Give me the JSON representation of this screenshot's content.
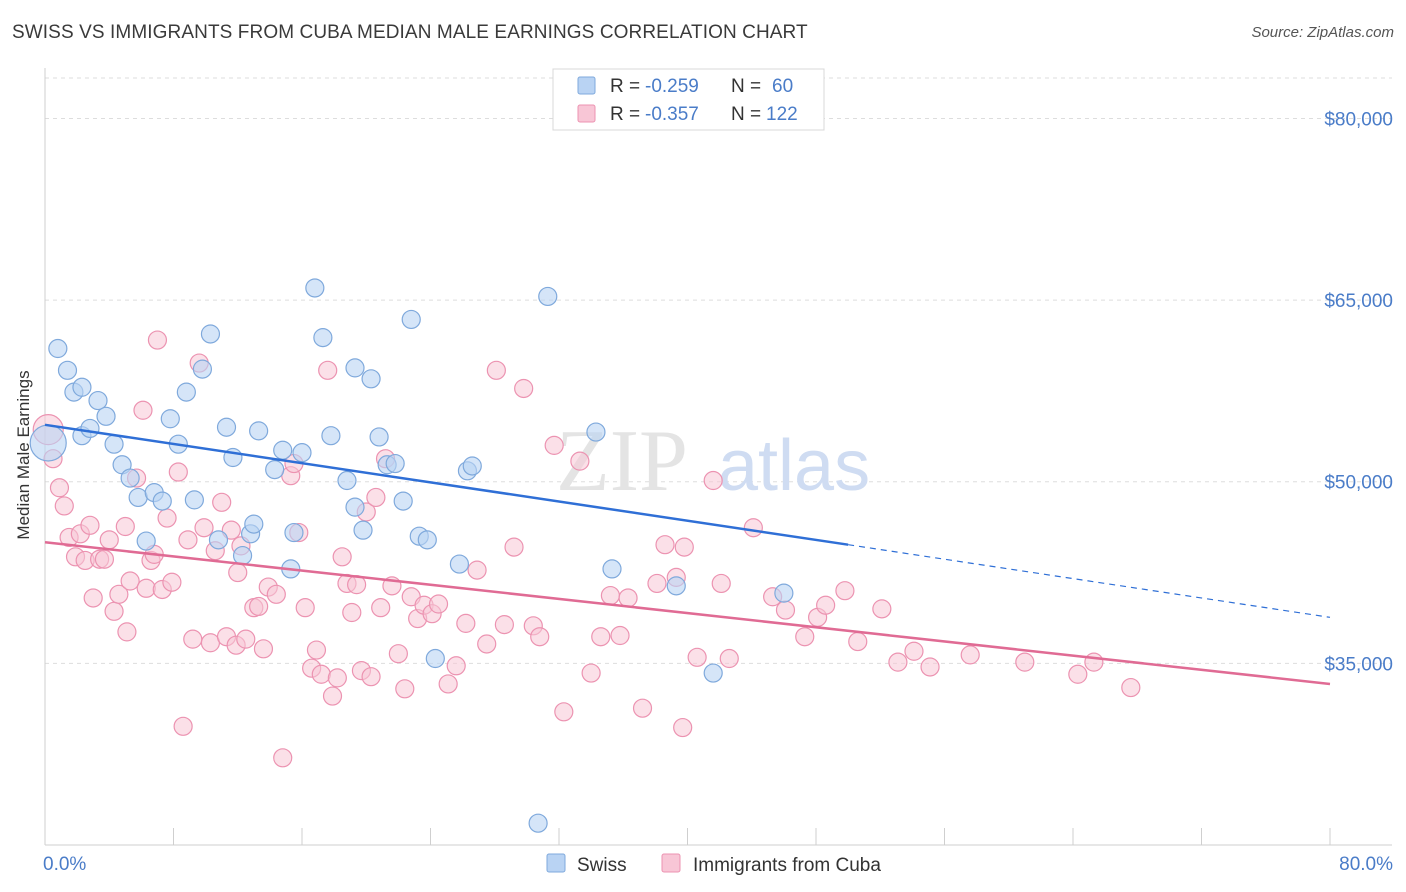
{
  "title": "SWISS VS IMMIGRANTS FROM CUBA MEDIAN MALE EARNINGS CORRELATION CHART",
  "source": "Source: ZipAtlas.com",
  "watermark": {
    "part1": "ZIP",
    "part2": "atlas"
  },
  "colors": {
    "swiss_fill": "#b9d3f3",
    "swiss_stroke": "#7fa9dc",
    "swiss_line": "#2f6fd6",
    "cuba_fill": "#f8c6d6",
    "cuba_stroke": "#ec93b1",
    "cuba_line": "#e06b94",
    "axis_label": "#4a7cc8",
    "grid": "#dddddd"
  },
  "legend": {
    "rows": [
      {
        "r_label": "R =",
        "r_value": "-0.259",
        "n_label": "N =",
        "n_value": "60"
      },
      {
        "r_label": "R =",
        "r_value": "-0.357",
        "n_label": "N =",
        "n_value": "122"
      }
    ]
  },
  "bottom_legend": {
    "swiss": "Swiss",
    "cuba": "Immigrants from Cuba"
  },
  "chart_data": {
    "type": "scatter",
    "title": "SWISS VS IMMIGRANTS FROM CUBA MEDIAN MALE EARNINGS CORRELATION CHART",
    "xlabel": "",
    "ylabel": "Median Male Earnings",
    "xlim": [
      0,
      80
    ],
    "ylim": [
      20000,
      84000
    ],
    "x_tick_labels": [
      "0.0%",
      "80.0%"
    ],
    "y_ticks": [
      35000,
      50000,
      65000,
      80000
    ],
    "y_tick_labels": [
      "$35,000",
      "$50,000",
      "$65,000",
      "$80,000"
    ],
    "grid": true,
    "legend_position": "top-center",
    "series": [
      {
        "name": "Swiss",
        "r": -0.259,
        "n": 60,
        "trend": {
          "x0": 0,
          "y0": 54700,
          "x1": 50,
          "y1": 44800,
          "dashed_to_x": 80,
          "dashed_to_y": 38800
        },
        "points": [
          {
            "x": 0.2,
            "y": 53200,
            "s": 18
          },
          {
            "x": 0.8,
            "y": 61000
          },
          {
            "x": 1.4,
            "y": 59200
          },
          {
            "x": 1.8,
            "y": 57400
          },
          {
            "x": 2.3,
            "y": 53800
          },
          {
            "x": 2.8,
            "y": 54400
          },
          {
            "x": 3.3,
            "y": 56700
          },
          {
            "x": 3.8,
            "y": 55400
          },
          {
            "x": 4.3,
            "y": 53100
          },
          {
            "x": 4.8,
            "y": 51400
          },
          {
            "x": 5.3,
            "y": 50300
          },
          {
            "x": 5.8,
            "y": 48700
          },
          {
            "x": 6.3,
            "y": 45100
          },
          {
            "x": 6.8,
            "y": 49100
          },
          {
            "x": 7.3,
            "y": 48400
          },
          {
            "x": 7.8,
            "y": 55200
          },
          {
            "x": 8.3,
            "y": 53100
          },
          {
            "x": 8.8,
            "y": 57400
          },
          {
            "x": 9.3,
            "y": 48500
          },
          {
            "x": 9.8,
            "y": 59300
          },
          {
            "x": 10.3,
            "y": 62200
          },
          {
            "x": 10.8,
            "y": 45200
          },
          {
            "x": 11.3,
            "y": 54500
          },
          {
            "x": 11.7,
            "y": 52000
          },
          {
            "x": 12.3,
            "y": 43900
          },
          {
            "x": 12.8,
            "y": 45700
          },
          {
            "x": 13.3,
            "y": 54200
          },
          {
            "x": 14.3,
            "y": 51000
          },
          {
            "x": 14.8,
            "y": 52600
          },
          {
            "x": 15.3,
            "y": 42800
          },
          {
            "x": 15.5,
            "y": 45800
          },
          {
            "x": 16.0,
            "y": 52400
          },
          {
            "x": 16.8,
            "y": 66000
          },
          {
            "x": 17.3,
            "y": 61900
          },
          {
            "x": 17.8,
            "y": 53800
          },
          {
            "x": 18.8,
            "y": 50100
          },
          {
            "x": 19.3,
            "y": 47900
          },
          {
            "x": 19.3,
            "y": 59400
          },
          {
            "x": 19.8,
            "y": 46000
          },
          {
            "x": 20.3,
            "y": 58500
          },
          {
            "x": 20.8,
            "y": 53700
          },
          {
            "x": 21.3,
            "y": 51400
          },
          {
            "x": 21.8,
            "y": 51500
          },
          {
            "x": 22.3,
            "y": 48400
          },
          {
            "x": 22.8,
            "y": 63400
          },
          {
            "x": 23.3,
            "y": 45500
          },
          {
            "x": 23.8,
            "y": 45200
          },
          {
            "x": 24.3,
            "y": 35400
          },
          {
            "x": 25.8,
            "y": 43200
          },
          {
            "x": 26.3,
            "y": 50900
          },
          {
            "x": 26.6,
            "y": 51300
          },
          {
            "x": 30.7,
            "y": 21800
          },
          {
            "x": 31.3,
            "y": 65300
          },
          {
            "x": 34.3,
            "y": 54100
          },
          {
            "x": 35.3,
            "y": 42800
          },
          {
            "x": 39.3,
            "y": 41400
          },
          {
            "x": 41.6,
            "y": 34200
          },
          {
            "x": 46.0,
            "y": 40800
          },
          {
            "x": 2.3,
            "y": 57800
          },
          {
            "x": 13.0,
            "y": 46500
          }
        ]
      },
      {
        "name": "Immigrants from Cuba",
        "r": -0.357,
        "n": 122,
        "trend": {
          "x0": 0,
          "y0": 45000,
          "x1": 80,
          "y1": 33300
        },
        "points": [
          {
            "x": 0.2,
            "y": 54300,
            "s": 15
          },
          {
            "x": 0.5,
            "y": 51900
          },
          {
            "x": 0.9,
            "y": 49500
          },
          {
            "x": 1.2,
            "y": 48000
          },
          {
            "x": 1.5,
            "y": 45400
          },
          {
            "x": 1.9,
            "y": 43800
          },
          {
            "x": 2.2,
            "y": 45700
          },
          {
            "x": 2.5,
            "y": 43500
          },
          {
            "x": 2.8,
            "y": 46400
          },
          {
            "x": 3.0,
            "y": 40400
          },
          {
            "x": 3.4,
            "y": 43600
          },
          {
            "x": 3.7,
            "y": 43600
          },
          {
            "x": 4.0,
            "y": 45200
          },
          {
            "x": 4.3,
            "y": 39300
          },
          {
            "x": 4.6,
            "y": 40700
          },
          {
            "x": 5.0,
            "y": 46300
          },
          {
            "x": 5.1,
            "y": 37600
          },
          {
            "x": 5.3,
            "y": 41800
          },
          {
            "x": 5.7,
            "y": 50300
          },
          {
            "x": 6.1,
            "y": 55900
          },
          {
            "x": 6.3,
            "y": 41200
          },
          {
            "x": 6.6,
            "y": 43500
          },
          {
            "x": 6.8,
            "y": 44000
          },
          {
            "x": 7.0,
            "y": 61700
          },
          {
            "x": 7.3,
            "y": 41100
          },
          {
            "x": 7.6,
            "y": 47000
          },
          {
            "x": 7.9,
            "y": 41700
          },
          {
            "x": 8.3,
            "y": 50800
          },
          {
            "x": 8.6,
            "y": 29800
          },
          {
            "x": 8.9,
            "y": 45200
          },
          {
            "x": 9.2,
            "y": 37000
          },
          {
            "x": 9.6,
            "y": 59800
          },
          {
            "x": 9.9,
            "y": 46200
          },
          {
            "x": 10.3,
            "y": 36700
          },
          {
            "x": 10.6,
            "y": 44300
          },
          {
            "x": 11.0,
            "y": 48300
          },
          {
            "x": 11.3,
            "y": 37200
          },
          {
            "x": 11.6,
            "y": 46000
          },
          {
            "x": 11.9,
            "y": 36500
          },
          {
            "x": 12.2,
            "y": 44700
          },
          {
            "x": 12.5,
            "y": 37000
          },
          {
            "x": 13.0,
            "y": 39600
          },
          {
            "x": 13.3,
            "y": 39700
          },
          {
            "x": 13.6,
            "y": 36200
          },
          {
            "x": 13.9,
            "y": 41300
          },
          {
            "x": 14.4,
            "y": 40700
          },
          {
            "x": 14.8,
            "y": 27200
          },
          {
            "x": 15.3,
            "y": 50500
          },
          {
            "x": 15.5,
            "y": 51500
          },
          {
            "x": 15.8,
            "y": 45800
          },
          {
            "x": 16.2,
            "y": 39600
          },
          {
            "x": 16.6,
            "y": 34600
          },
          {
            "x": 16.9,
            "y": 36100
          },
          {
            "x": 17.2,
            "y": 34100
          },
          {
            "x": 17.6,
            "y": 59200
          },
          {
            "x": 17.9,
            "y": 32300
          },
          {
            "x": 18.2,
            "y": 33800
          },
          {
            "x": 18.5,
            "y": 43800
          },
          {
            "x": 18.8,
            "y": 41600
          },
          {
            "x": 19.1,
            "y": 39200
          },
          {
            "x": 19.4,
            "y": 41500
          },
          {
            "x": 19.7,
            "y": 34400
          },
          {
            "x": 20.0,
            "y": 47500
          },
          {
            "x": 20.3,
            "y": 33900
          },
          {
            "x": 20.6,
            "y": 48700
          },
          {
            "x": 20.9,
            "y": 39600
          },
          {
            "x": 21.2,
            "y": 51900
          },
          {
            "x": 21.6,
            "y": 41400
          },
          {
            "x": 22.0,
            "y": 35800
          },
          {
            "x": 22.4,
            "y": 32900
          },
          {
            "x": 22.8,
            "y": 40500
          },
          {
            "x": 23.2,
            "y": 38700
          },
          {
            "x": 23.6,
            "y": 39800
          },
          {
            "x": 24.1,
            "y": 39100
          },
          {
            "x": 24.5,
            "y": 39900
          },
          {
            "x": 25.1,
            "y": 33300
          },
          {
            "x": 25.6,
            "y": 34800
          },
          {
            "x": 26.2,
            "y": 38300
          },
          {
            "x": 26.9,
            "y": 42700
          },
          {
            "x": 27.5,
            "y": 36600
          },
          {
            "x": 28.1,
            "y": 59200
          },
          {
            "x": 28.6,
            "y": 38200
          },
          {
            "x": 29.2,
            "y": 44600
          },
          {
            "x": 29.8,
            "y": 57700
          },
          {
            "x": 30.4,
            "y": 38100
          },
          {
            "x": 30.8,
            "y": 37200
          },
          {
            "x": 31.7,
            "y": 53000
          },
          {
            "x": 32.3,
            "y": 31000
          },
          {
            "x": 33.3,
            "y": 51700
          },
          {
            "x": 34.0,
            "y": 34200
          },
          {
            "x": 34.6,
            "y": 37200
          },
          {
            "x": 35.2,
            "y": 40600
          },
          {
            "x": 35.8,
            "y": 37300
          },
          {
            "x": 36.3,
            "y": 40400
          },
          {
            "x": 37.2,
            "y": 31300
          },
          {
            "x": 38.1,
            "y": 41600
          },
          {
            "x": 38.6,
            "y": 44800
          },
          {
            "x": 39.3,
            "y": 42100
          },
          {
            "x": 39.7,
            "y": 29700
          },
          {
            "x": 39.8,
            "y": 44600
          },
          {
            "x": 40.6,
            "y": 35500
          },
          {
            "x": 41.6,
            "y": 50100
          },
          {
            "x": 42.1,
            "y": 41600
          },
          {
            "x": 42.6,
            "y": 35400
          },
          {
            "x": 44.1,
            "y": 46200
          },
          {
            "x": 45.3,
            "y": 40500
          },
          {
            "x": 46.1,
            "y": 39400
          },
          {
            "x": 47.3,
            "y": 37200
          },
          {
            "x": 48.1,
            "y": 38800
          },
          {
            "x": 48.6,
            "y": 39800
          },
          {
            "x": 49.8,
            "y": 41000
          },
          {
            "x": 50.6,
            "y": 36800
          },
          {
            "x": 52.1,
            "y": 39500
          },
          {
            "x": 53.1,
            "y": 35100
          },
          {
            "x": 54.1,
            "y": 36000
          },
          {
            "x": 55.1,
            "y": 34700
          },
          {
            "x": 57.6,
            "y": 35700
          },
          {
            "x": 61.0,
            "y": 35100
          },
          {
            "x": 64.3,
            "y": 34100
          },
          {
            "x": 65.3,
            "y": 35100
          },
          {
            "x": 67.6,
            "y": 33000
          },
          {
            "x": 12.0,
            "y": 42500
          }
        ]
      }
    ]
  }
}
